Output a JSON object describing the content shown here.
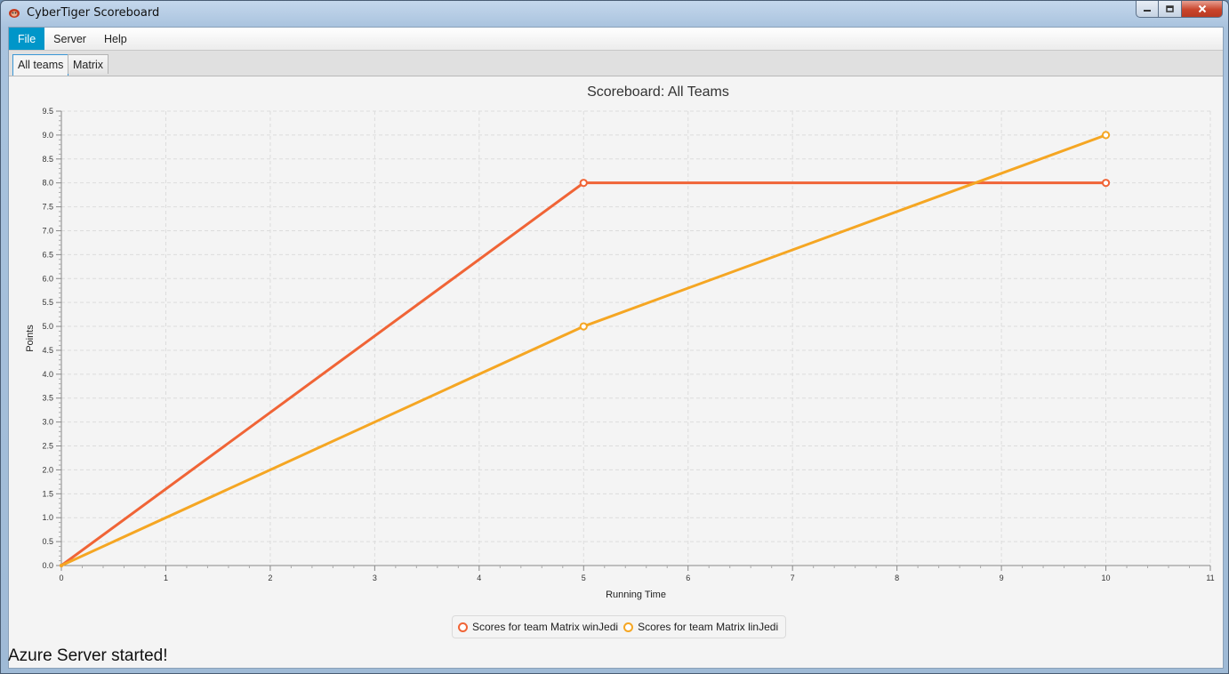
{
  "window": {
    "title": "CyberTiger Scoreboard",
    "controls": {
      "minimize": "minimize",
      "maximize": "maximize",
      "close": "close"
    }
  },
  "menu": {
    "items": [
      {
        "label": "File",
        "active": true
      },
      {
        "label": "Server",
        "active": false
      },
      {
        "label": "Help",
        "active": false
      }
    ]
  },
  "tabs": [
    {
      "label": "All teams",
      "selected": true
    },
    {
      "label": "Matrix",
      "selected": false
    }
  ],
  "status": {
    "message": "Azure Server started!"
  },
  "colors": {
    "series1": "#f06436",
    "series2": "#f5a623",
    "tab_accent": "#3a96d6",
    "menu_active": "#0096c9"
  },
  "chart_data": {
    "type": "line",
    "title": "Scoreboard: All Teams",
    "xlabel": "Running Time",
    "ylabel": "Points",
    "xlim": [
      0,
      11
    ],
    "ylim": [
      0,
      9.5
    ],
    "x_ticks": [
      "0",
      "1",
      "2",
      "3",
      "4",
      "5",
      "6",
      "7",
      "8",
      "9",
      "10",
      "11"
    ],
    "y_ticks": [
      "0.0",
      "0.5",
      "1.0",
      "1.5",
      "2.0",
      "2.5",
      "3.0",
      "3.5",
      "4.0",
      "4.5",
      "5.0",
      "5.5",
      "6.0",
      "6.5",
      "7.0",
      "7.5",
      "8.0",
      "8.5",
      "9.0",
      "9.5"
    ],
    "grid": true,
    "legend_position": "bottom",
    "series": [
      {
        "name": "Scores for team Matrix winJedi",
        "color": "#f06436",
        "points": [
          [
            0,
            0
          ],
          [
            5,
            8
          ],
          [
            10,
            8
          ]
        ]
      },
      {
        "name": "Scores for team Matrix linJedi",
        "color": "#f5a623",
        "points": [
          [
            0,
            0
          ],
          [
            5,
            5
          ],
          [
            10,
            9
          ]
        ]
      }
    ]
  }
}
